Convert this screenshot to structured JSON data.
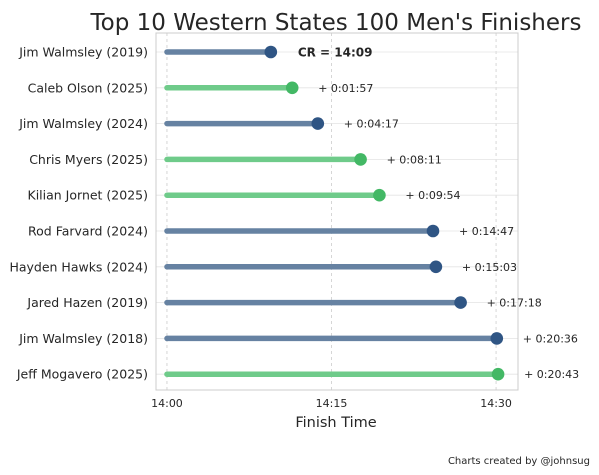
{
  "chart_data": {
    "type": "dumbbell",
    "title": "Top 10 Western States 100 Men's Finishers",
    "xlabel": "Finish Time",
    "ylabel": "",
    "x_unit": "finish time (h:mm:ss)",
    "xlim": [
      "13:59:00",
      "14:32:00"
    ],
    "x_ticks": [
      "14:00",
      "14:15",
      "14:30"
    ],
    "line_start": "14:00:00",
    "grid": true,
    "colors": {
      "2019": "#2f5584",
      "2024": "#2f5584",
      "2018": "#2f5584",
      "2025": "#43b865"
    },
    "line_colors": {
      "2019": "#6682a2",
      "2024": "#6682a2",
      "2018": "#6682a2",
      "2025": "#6fcb8a"
    },
    "course_record_label": "CR = 14:09",
    "categories": [
      "Jim Walmsley (2019)",
      "Caleb Olson (2025)",
      "Jim Walmsley (2024)",
      "Chris Myers (2025)",
      "Kilian Jornet (2025)",
      "Rod Farvard (2024)",
      "Hayden Hawks (2024)",
      "Jared Hazen (2019)",
      "Jim Walmsley (2018)",
      "Jeff Mogavero (2025)"
    ],
    "years": [
      "2019",
      "2025",
      "2024",
      "2025",
      "2025",
      "2024",
      "2024",
      "2019",
      "2018",
      "2025"
    ],
    "values": [
      "14:09:28",
      "14:11:25",
      "14:13:45",
      "14:17:39",
      "14:19:22",
      "14:24:15",
      "14:24:31",
      "14:26:46",
      "14:30:04",
      "14:30:11"
    ],
    "gap_labels": [
      "",
      "+ 0:01:57",
      "+ 0:04:17",
      "+ 0:08:11",
      "+ 0:09:54",
      "+ 0:14:47",
      "+ 0:15:03",
      "+ 0:17:18",
      "+ 0:20:36",
      "+ 0:20:43"
    ]
  },
  "footer": {
    "credit": "Charts created by @johnsug"
  }
}
